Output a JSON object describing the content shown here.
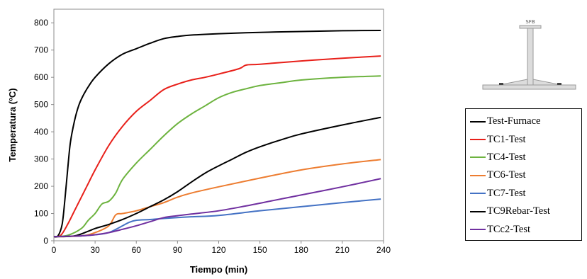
{
  "chart_data": {
    "type": "line",
    "xlabel": "Tiempo (min)",
    "ylabel": "Temperatura (ºC)",
    "xlim": [
      0,
      240
    ],
    "ylim": [
      0,
      850
    ],
    "xticks": [
      "0",
      "30",
      "60",
      "90",
      "120",
      "150",
      "180",
      "210",
      "240"
    ],
    "yticks": [
      "0",
      "100",
      "200",
      "300",
      "400",
      "500",
      "600",
      "700",
      "800"
    ],
    "grid": false,
    "legend_position": "right, outside plot",
    "series": [
      {
        "name": "Test-Furnace",
        "color": "#000000",
        "points": [
          [
            0,
            15
          ],
          [
            3,
            18
          ],
          [
            6,
            60
          ],
          [
            8,
            150
          ],
          [
            10,
            260
          ],
          [
            12,
            360
          ],
          [
            15,
            440
          ],
          [
            18,
            495
          ],
          [
            21,
            530
          ],
          [
            25,
            565
          ],
          [
            30,
            600
          ],
          [
            40,
            650
          ],
          [
            50,
            685
          ],
          [
            60,
            705
          ],
          [
            70,
            725
          ],
          [
            80,
            742
          ],
          [
            90,
            750
          ],
          [
            100,
            755
          ],
          [
            120,
            760
          ],
          [
            150,
            765
          ],
          [
            180,
            768
          ],
          [
            210,
            771
          ],
          [
            238,
            772
          ]
        ]
      },
      {
        "name": "TC1-Test",
        "color": "#e8201a",
        "points": [
          [
            0,
            15
          ],
          [
            5,
            20
          ],
          [
            10,
            60
          ],
          [
            15,
            110
          ],
          [
            20,
            160
          ],
          [
            25,
            210
          ],
          [
            30,
            260
          ],
          [
            40,
            350
          ],
          [
            50,
            420
          ],
          [
            60,
            475
          ],
          [
            70,
            515
          ],
          [
            80,
            555
          ],
          [
            90,
            575
          ],
          [
            100,
            590
          ],
          [
            110,
            600
          ],
          [
            120,
            612
          ],
          [
            135,
            632
          ],
          [
            140,
            645
          ],
          [
            150,
            648
          ],
          [
            180,
            660
          ],
          [
            210,
            670
          ],
          [
            238,
            678
          ]
        ]
      },
      {
        "name": "TC4-Test",
        "color": "#6db33f",
        "points": [
          [
            0,
            15
          ],
          [
            10,
            20
          ],
          [
            20,
            45
          ],
          [
            25,
            75
          ],
          [
            30,
            100
          ],
          [
            35,
            135
          ],
          [
            40,
            145
          ],
          [
            45,
            175
          ],
          [
            50,
            225
          ],
          [
            60,
            285
          ],
          [
            70,
            335
          ],
          [
            80,
            385
          ],
          [
            90,
            430
          ],
          [
            100,
            465
          ],
          [
            110,
            495
          ],
          [
            120,
            525
          ],
          [
            130,
            545
          ],
          [
            140,
            558
          ],
          [
            150,
            570
          ],
          [
            165,
            580
          ],
          [
            180,
            590
          ],
          [
            210,
            600
          ],
          [
            238,
            605
          ]
        ]
      },
      {
        "name": "TC6-Test",
        "color": "#ed7d31",
        "points": [
          [
            0,
            15
          ],
          [
            20,
            18
          ],
          [
            30,
            30
          ],
          [
            40,
            55
          ],
          [
            45,
            95
          ],
          [
            50,
            100
          ],
          [
            60,
            110
          ],
          [
            70,
            125
          ],
          [
            80,
            140
          ],
          [
            90,
            160
          ],
          [
            100,
            175
          ],
          [
            120,
            198
          ],
          [
            150,
            230
          ],
          [
            180,
            260
          ],
          [
            210,
            282
          ],
          [
            238,
            298
          ]
        ]
      },
      {
        "name": "TC7-Test",
        "color": "#4472c4",
        "points": [
          [
            0,
            15
          ],
          [
            20,
            18
          ],
          [
            30,
            22
          ],
          [
            40,
            30
          ],
          [
            50,
            55
          ],
          [
            55,
            68
          ],
          [
            60,
            75
          ],
          [
            70,
            78
          ],
          [
            80,
            82
          ],
          [
            90,
            85
          ],
          [
            100,
            88
          ],
          [
            120,
            93
          ],
          [
            150,
            110
          ],
          [
            180,
            125
          ],
          [
            210,
            140
          ],
          [
            238,
            153
          ]
        ]
      },
      {
        "name": "TC9Rebar-Test",
        "color": "#000000",
        "points": [
          [
            0,
            15
          ],
          [
            15,
            18
          ],
          [
            25,
            35
          ],
          [
            30,
            45
          ],
          [
            40,
            60
          ],
          [
            50,
            78
          ],
          [
            60,
            100
          ],
          [
            70,
            125
          ],
          [
            80,
            150
          ],
          [
            90,
            180
          ],
          [
            100,
            215
          ],
          [
            110,
            248
          ],
          [
            120,
            275
          ],
          [
            130,
            300
          ],
          [
            140,
            325
          ],
          [
            150,
            345
          ],
          [
            165,
            370
          ],
          [
            180,
            392
          ],
          [
            210,
            425
          ],
          [
            238,
            453
          ]
        ]
      },
      {
        "name": "TCc2-Test",
        "color": "#7030a0",
        "points": [
          [
            0,
            15
          ],
          [
            20,
            18
          ],
          [
            30,
            22
          ],
          [
            40,
            30
          ],
          [
            50,
            42
          ],
          [
            60,
            55
          ],
          [
            70,
            70
          ],
          [
            80,
            85
          ],
          [
            90,
            92
          ],
          [
            100,
            98
          ],
          [
            120,
            110
          ],
          [
            140,
            128
          ],
          [
            160,
            148
          ],
          [
            180,
            168
          ],
          [
            210,
            198
          ],
          [
            238,
            228
          ]
        ]
      }
    ]
  },
  "section_label": "SFB"
}
